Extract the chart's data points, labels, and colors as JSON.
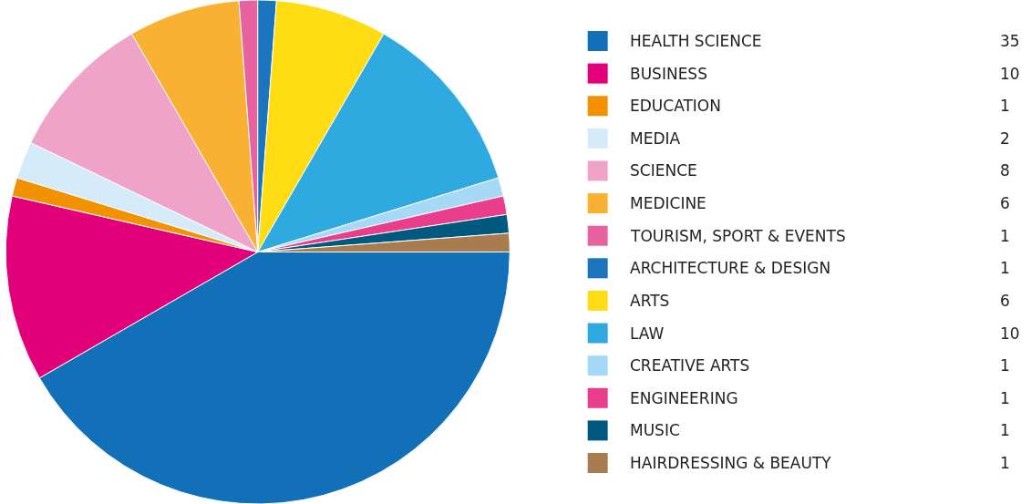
{
  "chart_data": {
    "type": "pie",
    "categories": [
      "HEALTH SCIENCE",
      "BUSINESS",
      "EDUCATION",
      "MEDIA",
      "SCIENCE",
      "MEDICINE",
      "TOURISM, SPORT & EVENTS",
      "ARCHITECTURE & DESIGN",
      "ARTS",
      "LAW",
      "CREATIVE ARTS",
      "ENGINEERING",
      "MUSIC",
      "HAIRDRESSING & BEAUTY"
    ],
    "values": [
      35,
      10,
      1,
      2,
      8,
      6,
      1,
      1,
      6,
      10,
      1,
      1,
      1,
      1
    ],
    "colors": [
      "#1170b8",
      "#e2007a",
      "#f39200",
      "#d5ebf9",
      "#f0a3c8",
      "#f8b133",
      "#e8629f",
      "#1a75bc",
      "#ffdc14",
      "#2faae1",
      "#a6d9f5",
      "#e83e8c",
      "#005a7f",
      "#a97c50"
    ],
    "data_labels": true,
    "legend": "right"
  }
}
